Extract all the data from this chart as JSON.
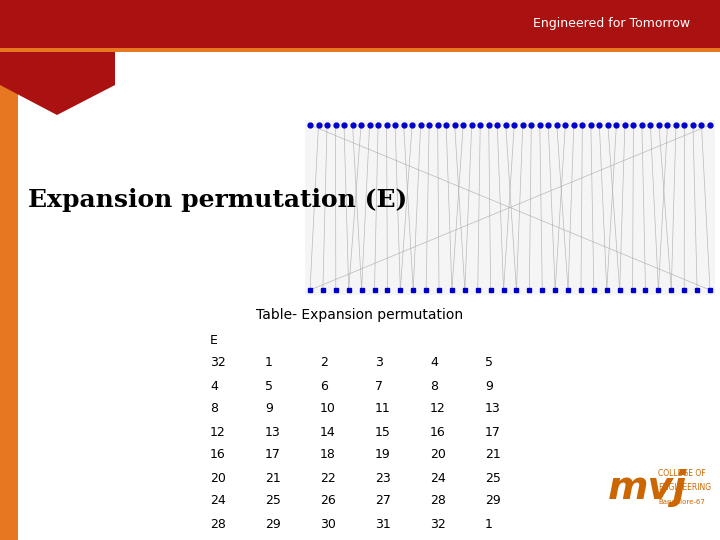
{
  "title": "Expansion permutation (E)",
  "subtitle": "Table- Expansion permutation",
  "header": "E",
  "table_data": [
    [
      32,
      1,
      2,
      3,
      4,
      5
    ],
    [
      4,
      5,
      6,
      7,
      8,
      9
    ],
    [
      8,
      9,
      10,
      11,
      12,
      13
    ],
    [
      12,
      13,
      14,
      15,
      16,
      17
    ],
    [
      16,
      17,
      18,
      19,
      20,
      21
    ],
    [
      20,
      21,
      22,
      23,
      24,
      25
    ],
    [
      24,
      25,
      26,
      27,
      28,
      29
    ],
    [
      28,
      29,
      30,
      31,
      32,
      1
    ]
  ],
  "bg_color": "#ffffff",
  "left_bar_color": "#e87722",
  "top_bar_color": "#aa1111",
  "triangle_color": "#8B0000",
  "dot_color": "#0000cc",
  "line_color": "#aaaaaa",
  "text_color": "#000000",
  "title_color": "#000000",
  "subtitle_color": "#000000",
  "top_text": "Engineered for Tomorrow",
  "top_text_color": "#ffffff",
  "n_input": 32,
  "n_output": 48,
  "mvj_color": "#cc6600",
  "e_table": [
    32,
    1,
    2,
    3,
    4,
    5,
    4,
    5,
    6,
    7,
    8,
    9,
    8,
    9,
    10,
    11,
    12,
    13,
    12,
    13,
    14,
    15,
    16,
    17,
    16,
    17,
    18,
    19,
    20,
    21,
    20,
    21,
    22,
    23,
    24,
    25,
    24,
    25,
    26,
    27,
    28,
    29,
    28,
    29,
    30,
    31,
    32,
    1
  ]
}
